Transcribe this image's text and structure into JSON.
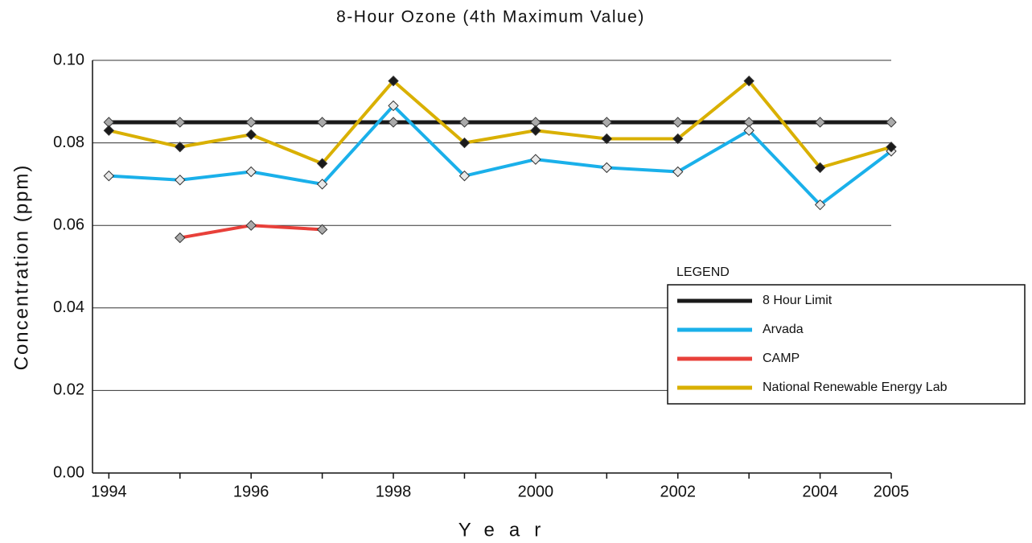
{
  "chart_data": {
    "type": "line",
    "title": "8-Hour Ozone (4th Maximum Value)",
    "x_label": "Year",
    "y_label": "Concentration (ppm)",
    "legend_title": "LEGEND",
    "x": [
      1994,
      1995,
      1996,
      1997,
      1998,
      1999,
      2000,
      2001,
      2002,
      2003,
      2004,
      2005
    ],
    "xlim": [
      1993.77,
      2005
    ],
    "xticks": [
      1994,
      1996,
      1998,
      2000,
      2002,
      2004,
      2005
    ],
    "ylim": [
      0,
      0.1
    ],
    "yticks": [
      {
        "value": 0,
        "label": "0.00"
      },
      0.02,
      0.04,
      0.06,
      0.08,
      {
        "value": 0.1,
        "label": "0.10"
      }
    ],
    "grid": true,
    "legend_position": "right",
    "series": [
      {
        "name": "8 Hour Limit",
        "color": "#1a1a1a",
        "marker_color": "#aaaaaa",
        "values": [
          0.085,
          0.085,
          0.085,
          0.085,
          0.085,
          0.085,
          0.085,
          0.085,
          0.085,
          0.085,
          0.085,
          0.085
        ]
      },
      {
        "name": "Arvada",
        "color": "#1ab0ea",
        "marker_color": "#e8e8e8",
        "values": [
          0.072,
          0.071,
          0.073,
          0.07,
          0.089,
          0.072,
          0.076,
          0.074,
          0.073,
          0.083,
          0.065,
          0.078
        ]
      },
      {
        "name": "CAMP",
        "color": "#e8403a",
        "marker_color": "#aaaaaa",
        "values": [
          null,
          0.057,
          0.06,
          0.059,
          null,
          null,
          null,
          null,
          null,
          null,
          null,
          null
        ]
      },
      {
        "name": "National Renewable Energy Lab",
        "color": "#d9b000",
        "marker_color": "#1a1a1a",
        "values": [
          0.083,
          0.079,
          0.082,
          0.075,
          0.095,
          0.08,
          0.083,
          0.081,
          0.081,
          0.095,
          0.074,
          0.079
        ]
      }
    ]
  }
}
